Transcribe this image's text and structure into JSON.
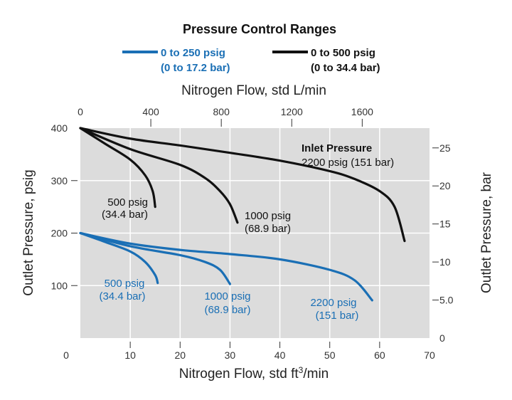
{
  "chart_data": {
    "type": "line",
    "title": "Pressure Control Ranges",
    "legend": [
      {
        "line1": "0 to 250 psig",
        "line2": "(0 to 17.2 bar)",
        "color": "#1a6fb5"
      },
      {
        "line1": "0 to 500 psig",
        "line2": "(0 to 34.4 bar)",
        "color": "#111111"
      }
    ],
    "legend_placement": "top",
    "xlabel": "Nitrogen Flow, std ft3/min",
    "xlabel_main": "Nitrogen Flow, std ft",
    "xlabel_sup": "3",
    "xlabel_tail": "/min",
    "x2label": "Nitrogen Flow, std L/min",
    "ylabel": "Outlet Pressure, psig",
    "y2label": "Outlet Pressure, bar",
    "xlim": [
      0,
      70
    ],
    "ylim": [
      0,
      400
    ],
    "x2lim": [
      0,
      1982
    ],
    "y2lim": [
      0,
      27.6
    ],
    "xticks": [
      "0",
      "10",
      "20",
      "30",
      "40",
      "50",
      "60",
      "70"
    ],
    "x2ticks": [
      "0",
      "400",
      "800",
      "1200",
      "1600"
    ],
    "yticks": [
      "100",
      "200",
      "300",
      "400"
    ],
    "y2ticks": [
      "0",
      "5.0",
      "10",
      "15",
      "20",
      "25"
    ],
    "grid": true,
    "annotation_header": "Inlet Pressure",
    "series": [
      {
        "name": "2200 psig (151 bar)",
        "range": "0 to 500 psig",
        "color": "#111111",
        "x": [
          0,
          10,
          20,
          30,
          40,
          50,
          55,
          60,
          63,
          65
        ],
        "y": [
          400,
          380,
          367,
          353,
          338,
          318,
          303,
          280,
          250,
          185
        ]
      },
      {
        "name": "1000 psig (68.9 bar)",
        "range": "0 to 500 psig",
        "color": "#111111",
        "x": [
          0,
          10,
          20,
          25,
          28,
          30,
          31.5
        ],
        "y": [
          400,
          360,
          330,
          305,
          280,
          255,
          220
        ]
      },
      {
        "name": "500 psig (34.4 bar)",
        "range": "0 to 500 psig",
        "color": "#111111",
        "x": [
          0,
          5,
          10,
          13,
          14.5,
          15
        ],
        "y": [
          400,
          370,
          340,
          310,
          280,
          250
        ]
      },
      {
        "name": "2200 psig (151 bar)",
        "range": "0 to 250 psig",
        "color": "#1a6fb5",
        "x": [
          0,
          10,
          20,
          30,
          40,
          50,
          55,
          58.5
        ],
        "y": [
          200,
          180,
          168,
          160,
          150,
          130,
          110,
          72
        ]
      },
      {
        "name": "1000 psig (68.9 bar)",
        "range": "0 to 250 psig",
        "color": "#1a6fb5",
        "x": [
          0,
          10,
          20,
          25,
          28,
          30
        ],
        "y": [
          200,
          175,
          158,
          145,
          130,
          103
        ]
      },
      {
        "name": "500 psig (34.4 bar)",
        "range": "0 to 250 psig",
        "color": "#1a6fb5",
        "x": [
          0,
          5,
          10,
          13,
          15,
          15.5
        ],
        "y": [
          200,
          183,
          165,
          145,
          120,
          105
        ]
      }
    ],
    "labels": {
      "black_2200": "2200 psig (151 bar)",
      "black_1000_a": "1000 psig",
      "black_1000_b": "(68.9 bar)",
      "black_500_a": "500 psig",
      "black_500_b": "(34.4 bar)",
      "blue_2200_a": "2200 psig",
      "blue_2200_b": "(151 bar)",
      "blue_1000_a": "1000 psig",
      "blue_1000_b": "(68.9 bar)",
      "blue_500_a": "500 psig",
      "blue_500_b": "(34.4 bar)"
    }
  }
}
